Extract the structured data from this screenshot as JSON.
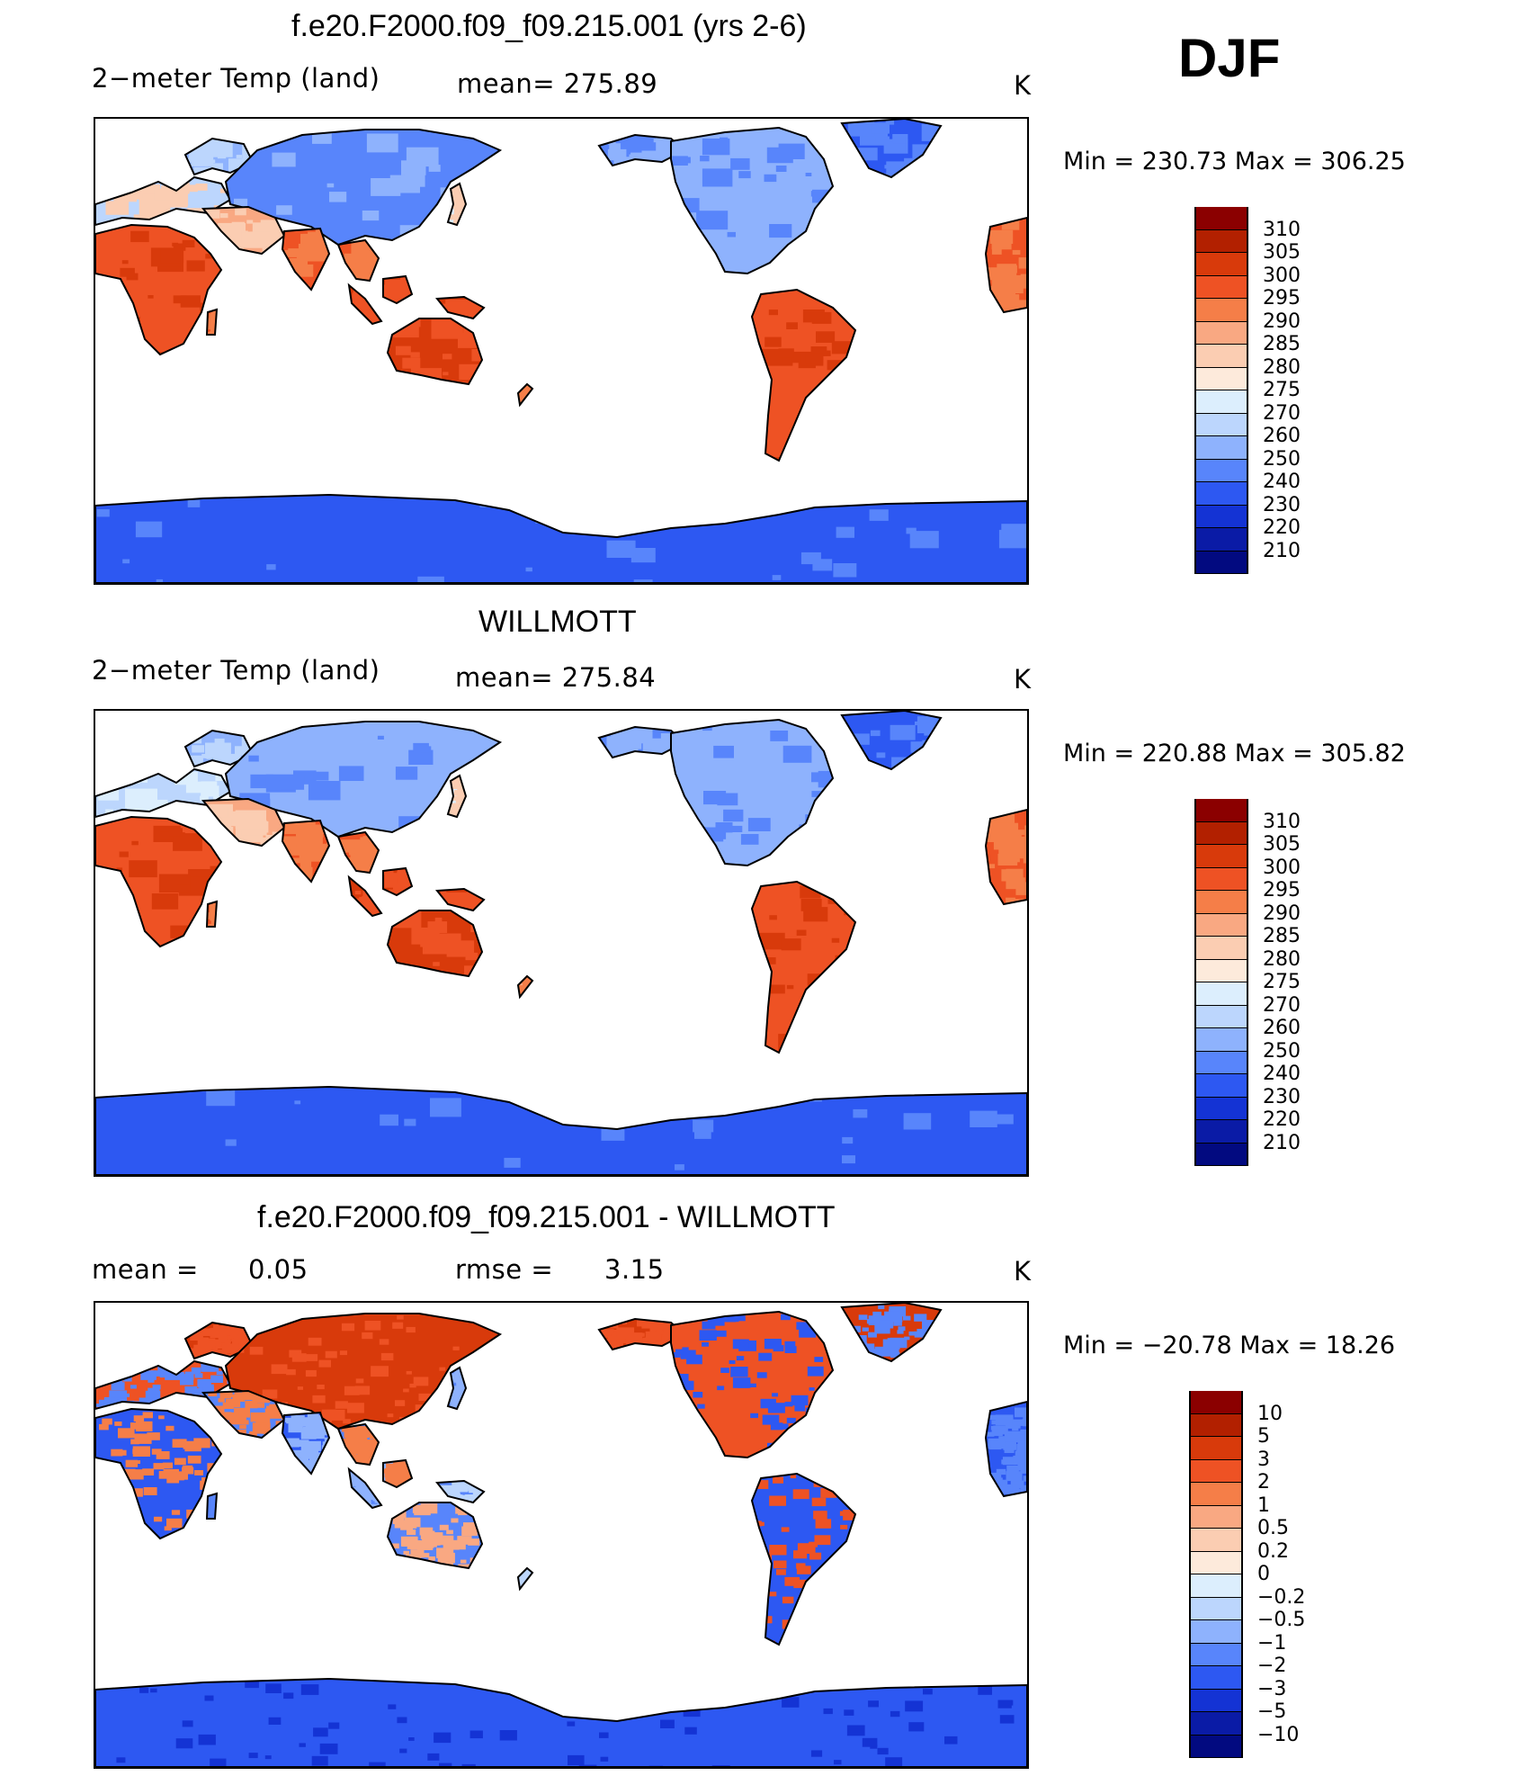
{
  "season": "DJF",
  "panels": [
    {
      "id": "model",
      "title": "f.e20.F2000.f09_f09.215.001 (yrs 2-6)",
      "left_label": "2−meter Temp (land)",
      "center_label": "mean= 275.89",
      "units": "K",
      "minmax": "Min = 230.73 Max = 306.25",
      "variant": "abs"
    },
    {
      "id": "obs",
      "title": "WILLMOTT",
      "left_label": "2−meter Temp (land)",
      "center_label": "mean= 275.84",
      "units": "K",
      "minmax": "Min = 220.88 Max = 305.82",
      "variant": "obs"
    },
    {
      "id": "diff",
      "title": "f.e20.F2000.f09_f09.215.001 - WILLMOTT",
      "left_label": "mean =",
      "left_value": "0.05",
      "center_label": "rmse =",
      "center_value": "3.15",
      "units": "K",
      "minmax": "Min = −20.78 Max =  18.26",
      "variant": "diff"
    }
  ],
  "colorbars": {
    "abs": {
      "labels": [
        "310",
        "305",
        "300",
        "295",
        "290",
        "285",
        "280",
        "275",
        "270",
        "260",
        "250",
        "240",
        "230",
        "220",
        "210"
      ],
      "colors": [
        "#8b0000",
        "#b22000",
        "#d83a0b",
        "#ee5224",
        "#f57e48",
        "#f9a882",
        "#fbcdb2",
        "#fdeadb",
        "#dceefd",
        "#bcd6fd",
        "#8eb2fd",
        "#5885fb",
        "#2d58f2",
        "#1433d4",
        "#0a1ba6",
        "#020a80"
      ]
    },
    "diff": {
      "labels": [
        "10",
        "5",
        "3",
        "2",
        "1",
        "0.5",
        "0.2",
        "0",
        "−0.2",
        "−0.5",
        "−1",
        "−2",
        "−3",
        "−5",
        "−10"
      ],
      "colors": [
        "#8b0000",
        "#b22000",
        "#d83a0b",
        "#ee5224",
        "#f57e48",
        "#f9a882",
        "#fbcdb2",
        "#fdeadb",
        "#dceefd",
        "#bcd6fd",
        "#8eb2fd",
        "#5885fb",
        "#2d58f2",
        "#1433d4",
        "#0a1ba6",
        "#020a80"
      ]
    }
  }
}
